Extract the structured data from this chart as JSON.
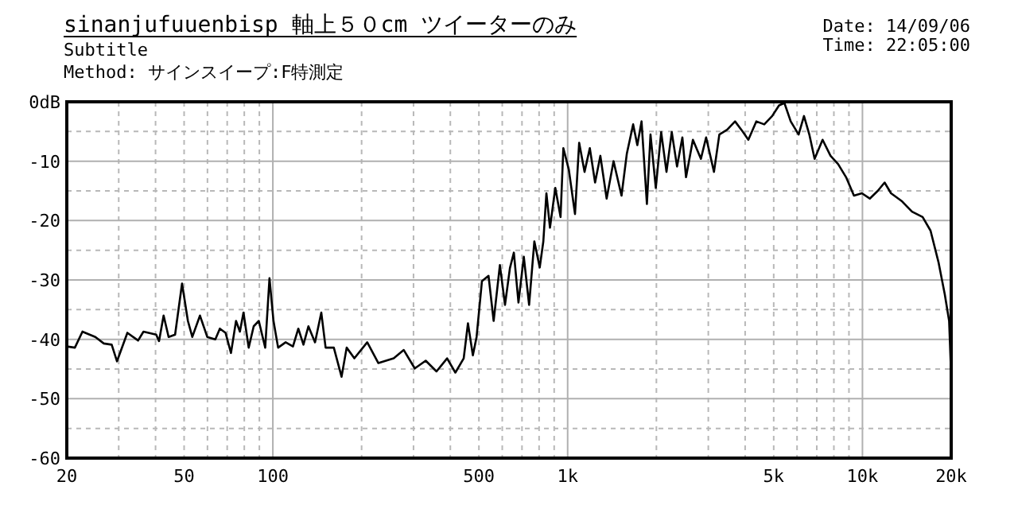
{
  "chart_data": {
    "type": "line",
    "title": "sinanjufuuenbisp 軸上５０cm ツイーターのみ",
    "subtitle": "Subtitle",
    "annotations": [
      "Method: サインスイープ:F特測定",
      "Date: 14/09/06",
      "Time: 22:05:00"
    ],
    "log": "x",
    "grid": true,
    "marker": "none",
    "line_style": "solid",
    "xlim": [
      20,
      20000
    ],
    "xticks": [
      20,
      50,
      100,
      500,
      {
        "value": 1000,
        "label": "1k"
      },
      {
        "value": 5000,
        "label": "5k"
      },
      {
        "value": 10000,
        "label": "10k"
      },
      {
        "value": 20000,
        "label": "20k"
      }
    ],
    "ylim": [
      -60,
      0
    ],
    "yticks": [
      {
        "value": 0,
        "label": "0dB"
      },
      -10,
      -20,
      -30,
      -40,
      -50,
      -60
    ],
    "series": [
      {
        "color": "#000000",
        "x": [
          20,
          21.3,
          22.6,
          25,
          26.7,
          28.4,
          29.6,
          32.1,
          34.9,
          36.4,
          40.2,
          41.1,
          42.6,
          44.3,
          46.6,
          49.2,
          51.5,
          53.3,
          56.6,
          59.9,
          63.8,
          66.1,
          69.1,
          72.1,
          75,
          77.3,
          79.5,
          82.8,
          86.1,
          89.6,
          94.2,
          97.4,
          100.5,
          104.2,
          110.5,
          117,
          122,
          127,
          132,
          139,
          146,
          151,
          161,
          171,
          178,
          189,
          209,
          228,
          257,
          278,
          303,
          330,
          359,
          390,
          416,
          444,
          459,
          477,
          491,
          512,
          539,
          561,
          589,
          613,
          637,
          657,
          681,
          710,
          740,
          771,
          804,
          827,
          847,
          871,
          908,
          946,
          967,
          1009,
          1059,
          1094,
          1141,
          1189,
          1239,
          1291,
          1356,
          1431,
          1523,
          1588,
          1668,
          1723,
          1781,
          1857,
          1910,
          1991,
          2076,
          2164,
          2255,
          2350,
          2450,
          2521,
          2660,
          2832,
          2949,
          3136,
          3270,
          3475,
          3697,
          3934,
          4102,
          4364,
          4644,
          4941,
          5214,
          5436,
          5710,
          6075,
          6334,
          6603,
          6883,
          7325,
          7793,
          8270,
          8800,
          9358,
          9955,
          10590,
          11270,
          11890,
          12500,
          13580,
          14730,
          16000,
          17020,
          18110,
          19020,
          19680,
          20000
        ],
        "values": [
          -41.2,
          -41.4,
          -38.7,
          -39.6,
          -40.7,
          -40.9,
          -43.7,
          -38.9,
          -40.2,
          -38.7,
          -39.2,
          -40.3,
          -36,
          -39.6,
          -39.2,
          -30.6,
          -36.9,
          -39.6,
          -36,
          -39.6,
          -40,
          -38.2,
          -38.9,
          -42.3,
          -36.9,
          -38.7,
          -35.5,
          -41.4,
          -37.8,
          -36.9,
          -41.4,
          -29.7,
          -36.9,
          -41.4,
          -40.5,
          -41.2,
          -38.2,
          -40.9,
          -37.8,
          -40.5,
          -35.5,
          -41.4,
          -41.4,
          -46.3,
          -41.4,
          -43.2,
          -40.5,
          -44,
          -43.2,
          -41.8,
          -44.9,
          -43.6,
          -45.4,
          -43.2,
          -45.6,
          -43.2,
          -37.3,
          -42.7,
          -39.6,
          -30.2,
          -29.3,
          -36.9,
          -27.5,
          -34.2,
          -28,
          -25.4,
          -33.8,
          -26.1,
          -34.2,
          -23.5,
          -27.9,
          -23.5,
          -15.4,
          -21.2,
          -14.5,
          -19.4,
          -7.8,
          -11.4,
          -18.9,
          -6.9,
          -11.8,
          -7.8,
          -13.6,
          -9.1,
          -16.3,
          -10,
          -15.8,
          -8.7,
          -3.8,
          -7.3,
          -3.3,
          -17.2,
          -5.5,
          -14.5,
          -5.1,
          -11.8,
          -5.1,
          -10.9,
          -6,
          -12.7,
          -6.4,
          -9.6,
          -6,
          -11.8,
          -5.5,
          -4.7,
          -3.3,
          -5.1,
          -6.4,
          -3.3,
          -3.8,
          -2.4,
          -0.6,
          -0.2,
          -3.3,
          -5.5,
          -2.4,
          -5.5,
          -9.6,
          -6.4,
          -9.1,
          -10.5,
          -12.7,
          -15.8,
          -15.4,
          -16.3,
          -15,
          -13.6,
          -15.4,
          -16.7,
          -18.5,
          -19.4,
          -21.7,
          -27,
          -32.4,
          -36.9,
          -46.3
        ]
      }
    ]
  }
}
